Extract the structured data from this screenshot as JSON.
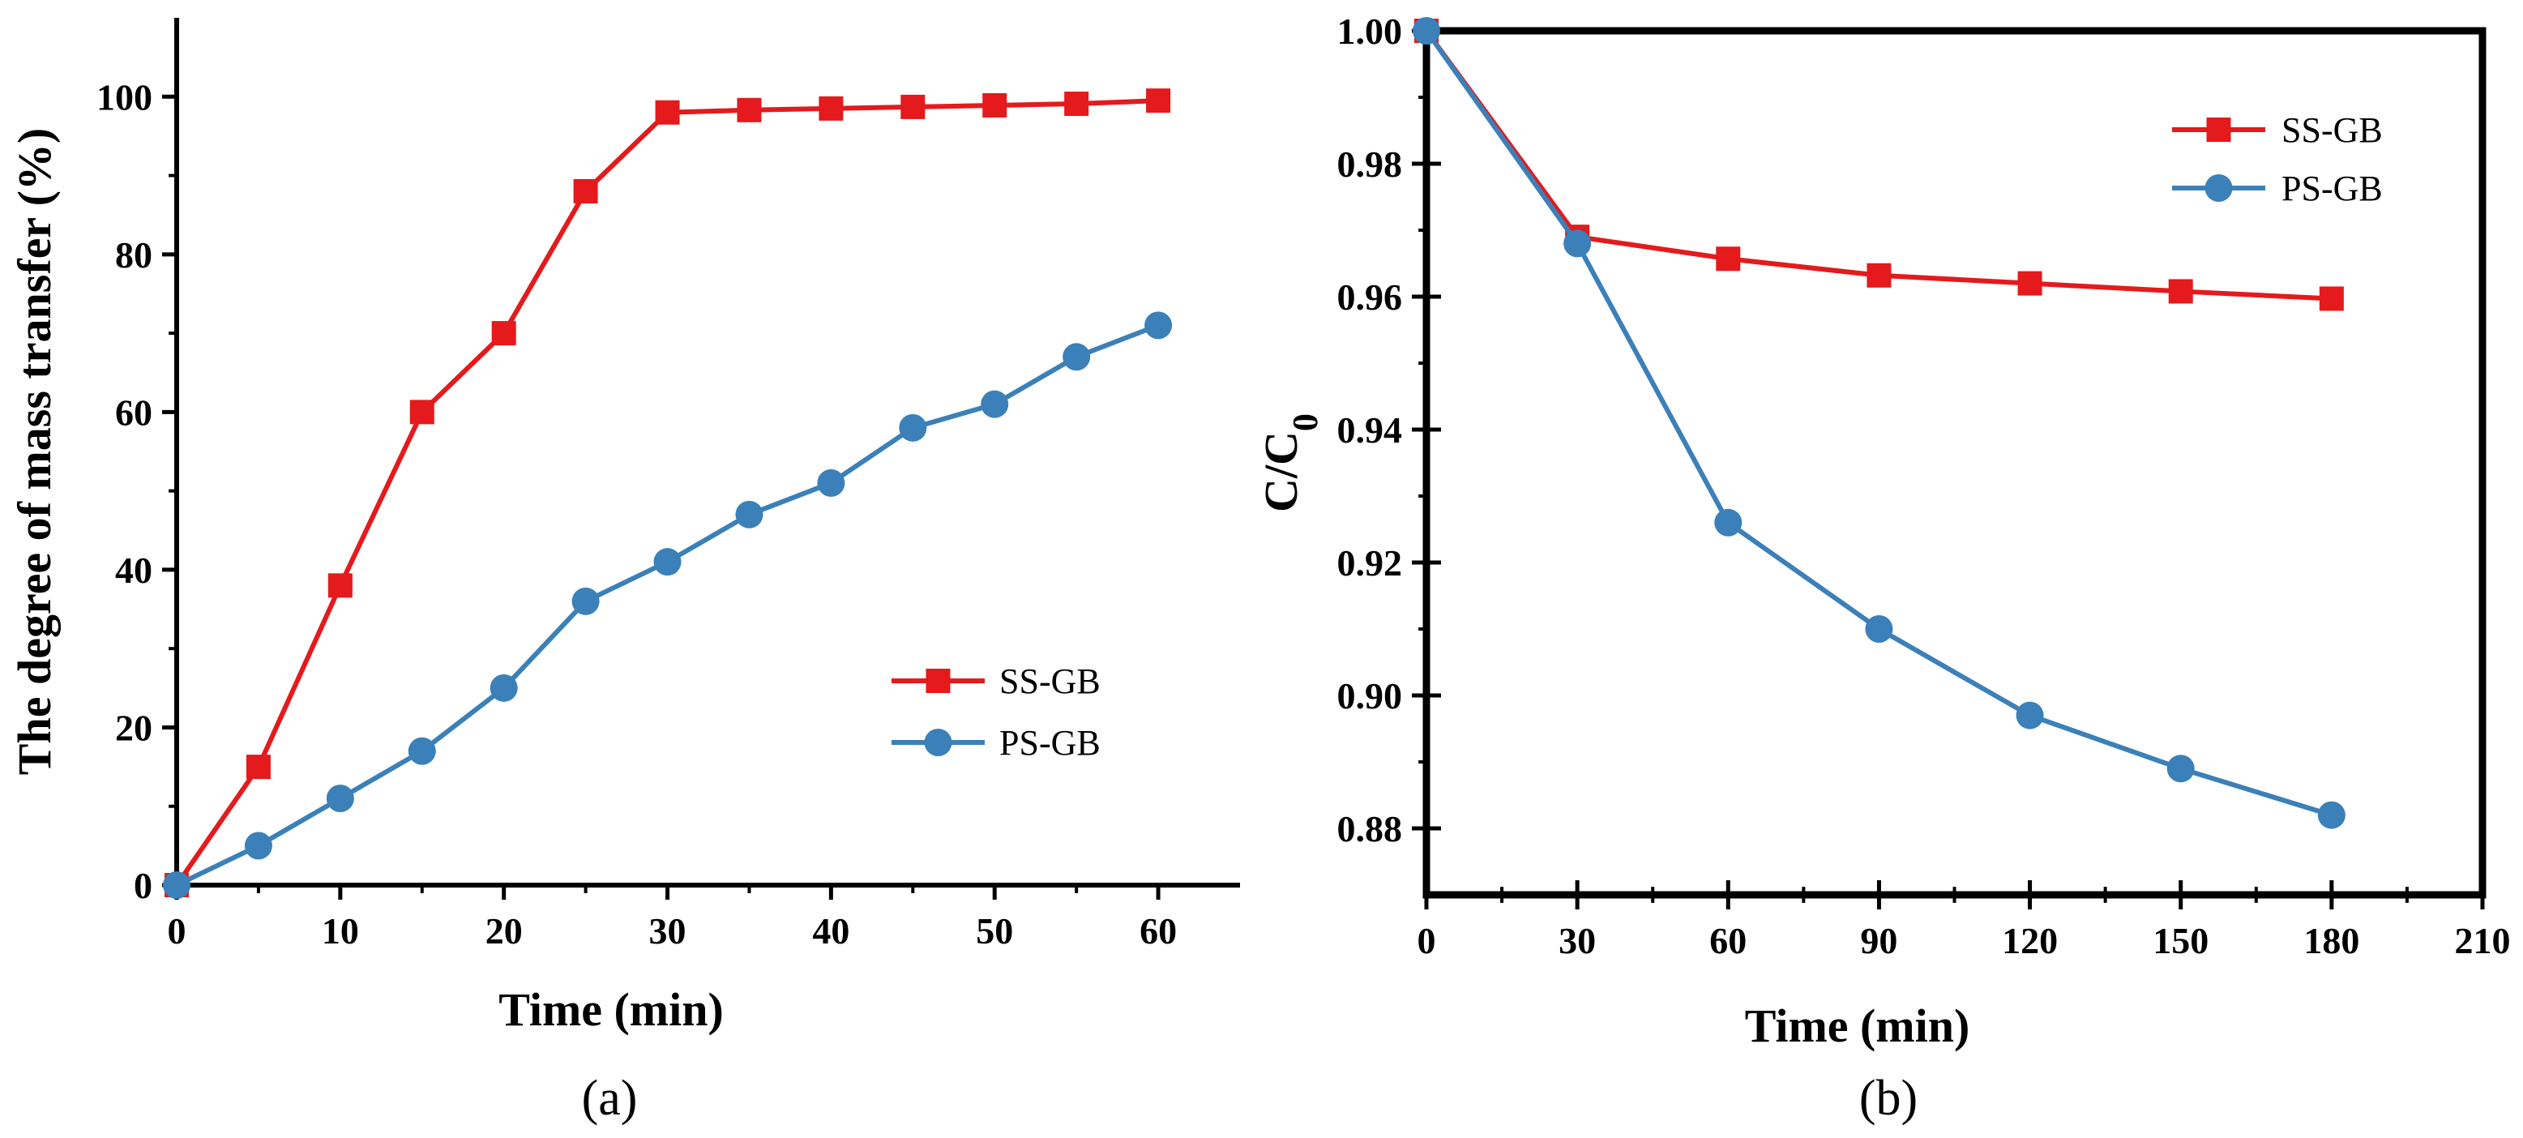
{
  "colors": {
    "ss": "#e41a1c",
    "ps": "#3b80b9",
    "axis": "#000000"
  },
  "chart_data": [
    {
      "type": "line",
      "panel_label": "(a)",
      "xlabel": "Time (min)",
      "ylabel": "The degree of mass transfer (%)",
      "xlim": [
        0,
        65
      ],
      "ylim": [
        0,
        110
      ],
      "xticks": [
        0,
        10,
        20,
        30,
        40,
        50,
        60
      ],
      "yticks": [
        0,
        20,
        40,
        60,
        80,
        100
      ],
      "legend_position": "center-right",
      "series": [
        {
          "name": "SS-GB",
          "marker": "square",
          "x": [
            0,
            5,
            10,
            15,
            20,
            25,
            30,
            35,
            40,
            45,
            50,
            55,
            60
          ],
          "y": [
            0,
            15,
            38,
            60,
            70,
            88,
            98,
            98.3,
            98.5,
            98.7,
            98.9,
            99.1,
            99.5
          ]
        },
        {
          "name": "PS-GB",
          "marker": "circle",
          "x": [
            0,
            5,
            10,
            15,
            20,
            25,
            30,
            35,
            40,
            45,
            50,
            55,
            60
          ],
          "y": [
            0,
            5,
            11,
            17,
            25,
            36,
            41,
            47,
            51,
            58,
            61,
            67,
            71
          ]
        }
      ]
    },
    {
      "type": "line",
      "panel_label": "(b)",
      "xlabel": "Time (min)",
      "ylabel": "C/C",
      "ylabel_sub": "0",
      "xlim": [
        0,
        210
      ],
      "ylim": [
        0.87,
        1.0
      ],
      "xticks": [
        0,
        30,
        60,
        90,
        120,
        150,
        180,
        210
      ],
      "yticks": [
        0.88,
        0.9,
        0.92,
        0.94,
        0.96,
        0.98,
        1.0
      ],
      "ytick_labels": [
        "0.88",
        "0.90",
        "0.92",
        "0.94",
        "0.96",
        "0.98",
        "1.00"
      ],
      "legend_position": "top-right",
      "series": [
        {
          "name": "SS-GB",
          "marker": "square",
          "x": [
            0,
            30,
            60,
            90,
            120,
            150,
            180
          ],
          "y": [
            1.0,
            0.969,
            0.9657,
            0.9632,
            0.962,
            0.9608,
            0.9597
          ]
        },
        {
          "name": "PS-GB",
          "marker": "circle",
          "x": [
            0,
            30,
            60,
            90,
            120,
            150,
            180
          ],
          "y": [
            1.0,
            0.968,
            0.926,
            0.91,
            0.897,
            0.889,
            0.882
          ]
        }
      ]
    }
  ]
}
